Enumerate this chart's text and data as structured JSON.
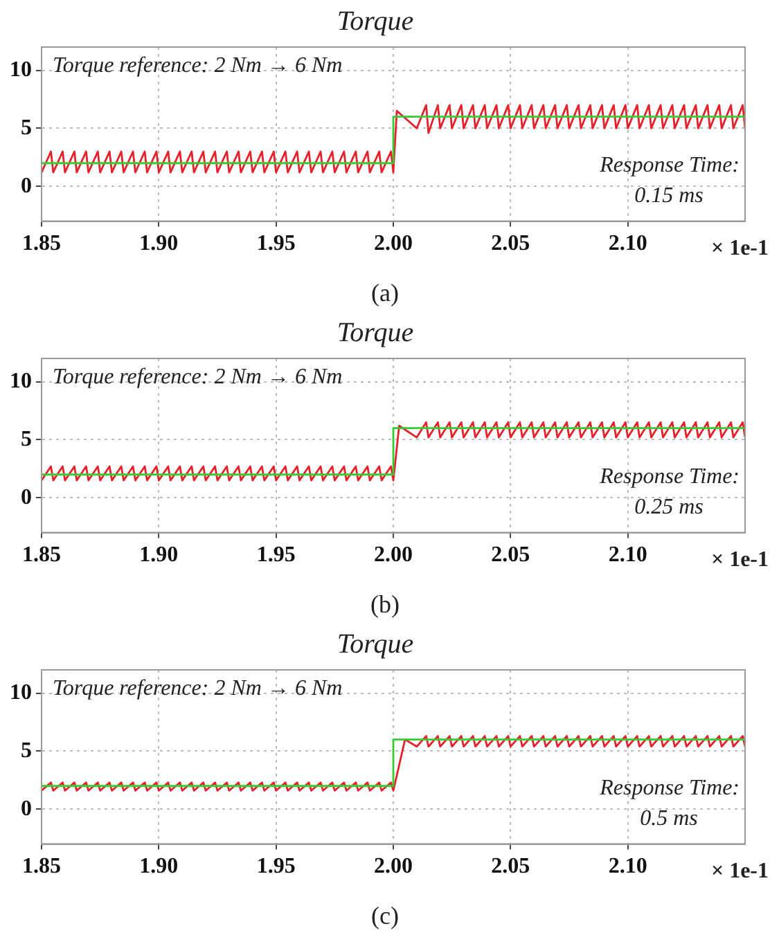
{
  "chart_data": [
    {
      "type": "line",
      "title": "Torque",
      "xlabel": "× 1e-1",
      "xlim": [
        1.85,
        2.15
      ],
      "ylim": [
        -3,
        12
      ],
      "xticks": [
        {
          "value": 1.85,
          "label": "1.85"
        },
        {
          "value": 1.9,
          "label": "1.90"
        },
        {
          "value": 1.95,
          "label": "1.95"
        },
        {
          "value": 2.0,
          "label": "2.00"
        },
        {
          "value": 2.05,
          "label": "2.05"
        },
        {
          "value": 2.1,
          "label": "2.10"
        }
      ],
      "yticks": [
        0,
        5,
        10
      ],
      "grid": true,
      "marker": "none",
      "annotations": [
        "Torque reference: 2 Nm → 6 Nm",
        "Response Time:",
        "0.15 ms",
        "(a)"
      ],
      "series": [
        {
          "color": "#33cc33",
          "x": [
            1.85,
            2.0,
            2.0,
            2.15
          ],
          "values": [
            2,
            2,
            6,
            6
          ]
        },
        {
          "color": "#e8202a",
          "x": [
            1.85,
            1.854,
            1.855,
            1.859,
            1.86,
            1.864,
            1.865,
            1.869,
            1.87,
            1.874,
            1.875,
            1.879,
            1.88,
            1.884,
            1.885,
            1.889,
            1.89,
            1.894,
            1.895,
            1.899,
            1.9,
            1.904,
            1.905,
            1.909,
            1.91,
            1.914,
            1.915,
            1.919,
            1.92,
            1.924,
            1.925,
            1.929,
            1.93,
            1.934,
            1.935,
            1.939,
            1.94,
            1.944,
            1.945,
            1.949,
            1.95,
            1.954,
            1.955,
            1.959,
            1.96,
            1.964,
            1.965,
            1.969,
            1.97,
            1.974,
            1.975,
            1.979,
            1.98,
            1.984,
            1.985,
            1.989,
            1.99,
            1.994,
            1.995,
            1.999,
            2.0,
            2.0015,
            2.01,
            2.014,
            2.015,
            2.019,
            2.02,
            2.024,
            2.025,
            2.029,
            2.03,
            2.034,
            2.035,
            2.039,
            2.04,
            2.044,
            2.045,
            2.049,
            2.05,
            2.054,
            2.055,
            2.059,
            2.06,
            2.064,
            2.065,
            2.069,
            2.07,
            2.074,
            2.075,
            2.079,
            2.08,
            2.084,
            2.085,
            2.089,
            2.09,
            2.094,
            2.095,
            2.099,
            2.1,
            2.104,
            2.105,
            2.109,
            2.11,
            2.114,
            2.115,
            2.119,
            2.12,
            2.124,
            2.125,
            2.129,
            2.13,
            2.134,
            2.135,
            2.139,
            2.14,
            2.144,
            2.145,
            2.149,
            2.15
          ],
          "values": [
            1.2,
            3,
            1.2,
            3,
            1.2,
            3,
            1.2,
            3,
            1.2,
            3,
            1.2,
            3,
            1.2,
            3,
            1.2,
            3,
            1.2,
            3,
            1.2,
            3,
            1.2,
            3,
            1.2,
            3,
            1.2,
            3,
            1.2,
            3,
            1.2,
            3,
            1.2,
            3,
            1.2,
            3,
            1.2,
            3,
            1.2,
            3,
            1.2,
            3,
            1.2,
            3,
            1.2,
            3,
            1.2,
            3,
            1.2,
            3,
            1.2,
            3,
            1.2,
            3,
            1.2,
            3,
            1.2,
            3,
            1.2,
            3,
            1.2,
            3,
            1.2,
            6.5,
            5,
            7,
            4.6,
            7,
            5,
            7,
            5,
            7,
            5,
            7,
            5,
            7,
            5,
            7,
            5,
            7,
            5,
            7,
            5,
            7,
            5,
            7,
            5,
            7,
            5,
            7,
            5,
            7,
            5,
            7,
            5,
            7,
            5,
            7,
            5,
            7,
            5,
            7,
            5,
            7,
            5,
            7,
            5,
            7,
            5,
            7,
            5,
            7,
            5,
            7,
            5,
            7,
            5,
            7,
            5,
            7,
            5
          ]
        }
      ]
    },
    {
      "type": "line",
      "title": "Torque",
      "xlabel": "× 1e-1",
      "xlim": [
        1.85,
        2.15
      ],
      "ylim": [
        -3,
        12
      ],
      "xticks": [
        {
          "value": 1.85,
          "label": "1.85"
        },
        {
          "value": 1.9,
          "label": "1.90"
        },
        {
          "value": 1.95,
          "label": "1.95"
        },
        {
          "value": 2.0,
          "label": "2.00"
        },
        {
          "value": 2.05,
          "label": "2.05"
        },
        {
          "value": 2.1,
          "label": "2.10"
        }
      ],
      "yticks": [
        0,
        5,
        10
      ],
      "grid": true,
      "marker": "none",
      "annotations": [
        "Torque reference: 2 Nm → 6 Nm",
        "Response Time:",
        "0.25 ms",
        "(b)"
      ],
      "series": [
        {
          "color": "#33cc33",
          "x": [
            1.85,
            2.0,
            2.0,
            2.15
          ],
          "values": [
            2,
            2,
            6,
            6
          ]
        },
        {
          "color": "#e8202a",
          "x": [
            1.85,
            1.854,
            1.855,
            1.859,
            1.86,
            1.864,
            1.865,
            1.869,
            1.87,
            1.874,
            1.875,
            1.879,
            1.88,
            1.884,
            1.885,
            1.889,
            1.89,
            1.894,
            1.895,
            1.899,
            1.9,
            1.904,
            1.905,
            1.909,
            1.91,
            1.914,
            1.915,
            1.919,
            1.92,
            1.924,
            1.925,
            1.929,
            1.93,
            1.934,
            1.935,
            1.939,
            1.94,
            1.944,
            1.945,
            1.949,
            1.95,
            1.954,
            1.955,
            1.959,
            1.96,
            1.964,
            1.965,
            1.969,
            1.97,
            1.974,
            1.975,
            1.979,
            1.98,
            1.984,
            1.985,
            1.989,
            1.99,
            1.994,
            1.995,
            1.999,
            2.0,
            2.0025,
            2.01,
            2.014,
            2.015,
            2.019,
            2.02,
            2.024,
            2.025,
            2.029,
            2.03,
            2.034,
            2.035,
            2.039,
            2.04,
            2.044,
            2.045,
            2.049,
            2.05,
            2.054,
            2.055,
            2.059,
            2.06,
            2.064,
            2.065,
            2.069,
            2.07,
            2.074,
            2.075,
            2.079,
            2.08,
            2.084,
            2.085,
            2.089,
            2.09,
            2.094,
            2.095,
            2.099,
            2.1,
            2.104,
            2.105,
            2.109,
            2.11,
            2.114,
            2.115,
            2.119,
            2.12,
            2.124,
            2.125,
            2.129,
            2.13,
            2.134,
            2.135,
            2.139,
            2.14,
            2.144,
            2.145,
            2.149,
            2.15
          ],
          "values": [
            1.5,
            2.7,
            1.5,
            2.7,
            1.5,
            2.7,
            1.5,
            2.7,
            1.5,
            2.7,
            1.5,
            2.7,
            1.5,
            2.7,
            1.5,
            2.7,
            1.5,
            2.7,
            1.5,
            2.7,
            1.5,
            2.7,
            1.5,
            2.7,
            1.5,
            2.7,
            1.5,
            2.7,
            1.5,
            2.7,
            1.5,
            2.7,
            1.5,
            2.7,
            1.5,
            2.7,
            1.5,
            2.7,
            1.5,
            2.7,
            1.5,
            2.7,
            1.5,
            2.7,
            1.5,
            2.7,
            1.5,
            2.7,
            1.5,
            2.7,
            1.5,
            2.7,
            1.5,
            2.7,
            1.5,
            2.7,
            1.5,
            2.7,
            1.5,
            2.7,
            1.5,
            6.2,
            5.2,
            6.5,
            5.2,
            6.5,
            5.2,
            6.5,
            5.2,
            6.5,
            5.2,
            6.5,
            5.2,
            6.5,
            5.2,
            6.5,
            5.2,
            6.5,
            5.2,
            6.5,
            5.2,
            6.5,
            5.2,
            6.5,
            5.2,
            6.5,
            5.2,
            6.5,
            5.2,
            6.5,
            5.2,
            6.5,
            5.2,
            6.5,
            5.2,
            6.5,
            5.2,
            6.5,
            5.2,
            6.5,
            5.2,
            6.5,
            5.2,
            6.5,
            5.2,
            6.5,
            5.2,
            6.5,
            5.2,
            6.5,
            5.2,
            6.5,
            5.2,
            6.5,
            5.2,
            6.5,
            5.2,
            6.5,
            5.2
          ]
        }
      ]
    },
    {
      "type": "line",
      "title": "Torque",
      "xlabel": "× 1e-1",
      "xlim": [
        1.85,
        2.15
      ],
      "ylim": [
        -3,
        12
      ],
      "xticks": [
        {
          "value": 1.85,
          "label": "1.85"
        },
        {
          "value": 1.9,
          "label": "1.90"
        },
        {
          "value": 1.95,
          "label": "1.95"
        },
        {
          "value": 2.0,
          "label": "2.00"
        },
        {
          "value": 2.05,
          "label": "2.05"
        },
        {
          "value": 2.1,
          "label": "2.10"
        }
      ],
      "yticks": [
        0,
        5,
        10
      ],
      "grid": true,
      "marker": "none",
      "annotations": [
        "Torque reference: 2 Nm → 6 Nm",
        "Response Time:",
        "0.5 ms",
        "(c)"
      ],
      "series": [
        {
          "color": "#33cc33",
          "x": [
            1.85,
            2.0,
            2.0,
            2.005,
            2.15
          ],
          "values": [
            2,
            2,
            6,
            6,
            6
          ]
        },
        {
          "color": "#e8202a",
          "x": [
            1.85,
            1.854,
            1.855,
            1.859,
            1.86,
            1.864,
            1.865,
            1.869,
            1.87,
            1.874,
            1.875,
            1.879,
            1.88,
            1.884,
            1.885,
            1.889,
            1.89,
            1.894,
            1.895,
            1.899,
            1.9,
            1.904,
            1.905,
            1.909,
            1.91,
            1.914,
            1.915,
            1.919,
            1.92,
            1.924,
            1.925,
            1.929,
            1.93,
            1.934,
            1.935,
            1.939,
            1.94,
            1.944,
            1.945,
            1.949,
            1.95,
            1.954,
            1.955,
            1.959,
            1.96,
            1.964,
            1.965,
            1.969,
            1.97,
            1.974,
            1.975,
            1.979,
            1.98,
            1.984,
            1.985,
            1.989,
            1.99,
            1.994,
            1.995,
            1.999,
            2.0,
            2.005,
            2.01,
            2.014,
            2.015,
            2.019,
            2.02,
            2.024,
            2.025,
            2.029,
            2.03,
            2.034,
            2.035,
            2.039,
            2.04,
            2.044,
            2.045,
            2.049,
            2.05,
            2.054,
            2.055,
            2.059,
            2.06,
            2.064,
            2.065,
            2.069,
            2.07,
            2.074,
            2.075,
            2.079,
            2.08,
            2.084,
            2.085,
            2.089,
            2.09,
            2.094,
            2.095,
            2.099,
            2.1,
            2.104,
            2.105,
            2.109,
            2.11,
            2.114,
            2.115,
            2.119,
            2.12,
            2.124,
            2.125,
            2.129,
            2.13,
            2.134,
            2.135,
            2.139,
            2.14,
            2.144,
            2.145,
            2.149,
            2.15
          ],
          "values": [
            1.6,
            2.3,
            1.6,
            2.3,
            1.6,
            2.3,
            1.6,
            2.3,
            1.6,
            2.3,
            1.6,
            2.3,
            1.6,
            2.3,
            1.6,
            2.3,
            1.6,
            2.3,
            1.6,
            2.3,
            1.6,
            2.3,
            1.6,
            2.3,
            1.6,
            2.3,
            1.6,
            2.3,
            1.6,
            2.3,
            1.6,
            2.3,
            1.6,
            2.3,
            1.6,
            2.3,
            1.6,
            2.3,
            1.6,
            2.3,
            1.6,
            2.3,
            1.6,
            2.3,
            1.6,
            2.3,
            1.6,
            2.3,
            1.6,
            2.3,
            1.6,
            2.3,
            1.6,
            2.3,
            1.6,
            2.3,
            1.6,
            2.3,
            1.6,
            2.3,
            1.6,
            6,
            5.4,
            6.3,
            5.4,
            6.3,
            5.4,
            6.3,
            5.4,
            6.3,
            5.4,
            6.3,
            5.4,
            6.3,
            5.4,
            6.3,
            5.4,
            6.3,
            5.4,
            6.3,
            5.4,
            6.3,
            5.4,
            6.3,
            5.4,
            6.3,
            5.4,
            6.3,
            5.4,
            6.3,
            5.4,
            6.3,
            5.4,
            6.3,
            5.4,
            6.3,
            5.4,
            6.3,
            5.4,
            6.3,
            5.4,
            6.3,
            5.4,
            6.3,
            5.4,
            6.3,
            5.4,
            6.3,
            5.4,
            6.3,
            5.4,
            6.3,
            5.4,
            6.3,
            5.4,
            6.3,
            5.4,
            6.3,
            5.4
          ]
        }
      ]
    }
  ]
}
